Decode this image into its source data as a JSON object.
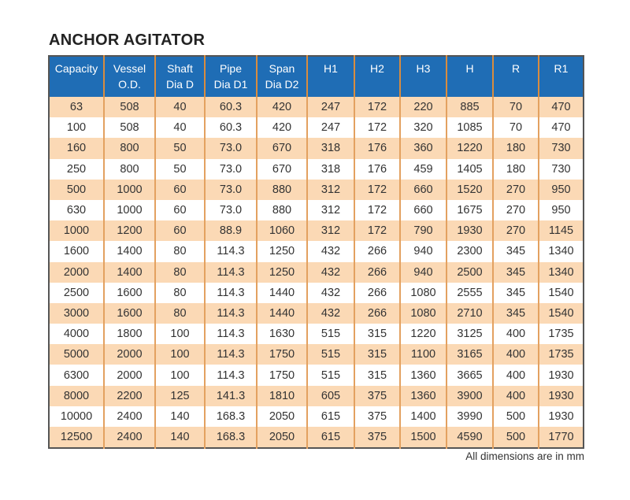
{
  "title": "ANCHOR AGITATOR",
  "table": {
    "headers": [
      [
        "Capacity",
        ""
      ],
      [
        "Vessel",
        "O.D."
      ],
      [
        "Shaft",
        "Dia D"
      ],
      [
        "Pipe",
        "Dia D1"
      ],
      [
        "Span",
        "Dia D2"
      ],
      [
        "H1",
        ""
      ],
      [
        "H2",
        ""
      ],
      [
        "H3",
        ""
      ],
      [
        "H",
        ""
      ],
      [
        "R",
        ""
      ],
      [
        "R1",
        ""
      ]
    ],
    "rows": [
      [
        "63",
        "508",
        "40",
        "60.3",
        "420",
        "247",
        "172",
        "220",
        "885",
        "70",
        "470"
      ],
      [
        "100",
        "508",
        "40",
        "60.3",
        "420",
        "247",
        "172",
        "320",
        "1085",
        "70",
        "470"
      ],
      [
        "160",
        "800",
        "50",
        "73.0",
        "670",
        "318",
        "176",
        "360",
        "1220",
        "180",
        "730"
      ],
      [
        "250",
        "800",
        "50",
        "73.0",
        "670",
        "318",
        "176",
        "459",
        "1405",
        "180",
        "730"
      ],
      [
        "500",
        "1000",
        "60",
        "73.0",
        "880",
        "312",
        "172",
        "660",
        "1520",
        "270",
        "950"
      ],
      [
        "630",
        "1000",
        "60",
        "73.0",
        "880",
        "312",
        "172",
        "660",
        "1675",
        "270",
        "950"
      ],
      [
        "1000",
        "1200",
        "60",
        "88.9",
        "1060",
        "312",
        "172",
        "790",
        "1930",
        "270",
        "1145"
      ],
      [
        "1600",
        "1400",
        "80",
        "114.3",
        "1250",
        "432",
        "266",
        "940",
        "2300",
        "345",
        "1340"
      ],
      [
        "2000",
        "1400",
        "80",
        "114.3",
        "1250",
        "432",
        "266",
        "940",
        "2500",
        "345",
        "1340"
      ],
      [
        "2500",
        "1600",
        "80",
        "114.3",
        "1440",
        "432",
        "266",
        "1080",
        "2555",
        "345",
        "1540"
      ],
      [
        "3000",
        "1600",
        "80",
        "114.3",
        "1440",
        "432",
        "266",
        "1080",
        "2710",
        "345",
        "1540"
      ],
      [
        "4000",
        "1800",
        "100",
        "114.3",
        "1630",
        "515",
        "315",
        "1220",
        "3125",
        "400",
        "1735"
      ],
      [
        "5000",
        "2000",
        "100",
        "114.3",
        "1750",
        "515",
        "315",
        "1100",
        "3165",
        "400",
        "1735"
      ],
      [
        "6300",
        "2000",
        "100",
        "114.3",
        "1750",
        "515",
        "315",
        "1360",
        "3665",
        "400",
        "1930"
      ],
      [
        "8000",
        "2200",
        "125",
        "141.3",
        "1810",
        "605",
        "375",
        "1360",
        "3900",
        "400",
        "1930"
      ],
      [
        "10000",
        "2400",
        "140",
        "168.3",
        "2050",
        "615",
        "375",
        "1400",
        "3990",
        "500",
        "1930"
      ],
      [
        "12500",
        "2400",
        "140",
        "168.3",
        "2050",
        "615",
        "375",
        "1500",
        "4590",
        "500",
        "1770"
      ]
    ]
  },
  "note": "All dimensions are in mm",
  "colors": {
    "header": "#1f6db5",
    "stripe": "#fbd9b5",
    "grid": "#e3a160"
  }
}
